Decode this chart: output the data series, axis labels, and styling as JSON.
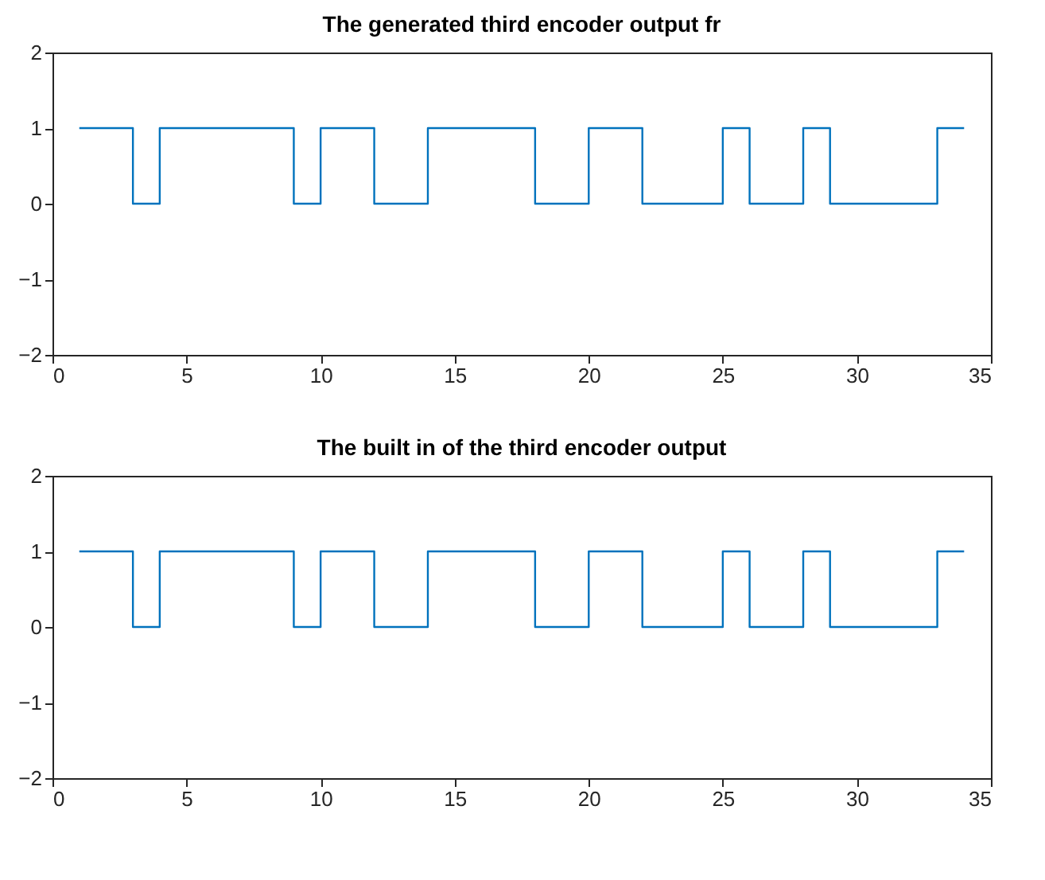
{
  "chart_data": [
    {
      "type": "step",
      "title": "The generated third encoder output fr",
      "x": [
        1,
        2,
        3,
        4,
        5,
        6,
        7,
        8,
        9,
        10,
        11,
        12,
        13,
        14,
        15,
        16,
        17,
        18,
        19,
        20,
        21,
        22,
        23,
        24,
        25,
        26,
        27,
        28,
        29,
        30,
        31,
        32,
        33,
        34
      ],
      "series": [
        {
          "color": "#0072bd",
          "values": [
            1,
            1,
            0,
            1,
            1,
            1,
            1,
            1,
            0,
            1,
            1,
            0,
            0,
            1,
            1,
            1,
            1,
            0,
            0,
            1,
            1,
            0,
            0,
            0,
            1,
            0,
            0,
            1,
            0,
            0,
            0,
            0,
            1,
            1
          ]
        }
      ],
      "xlim": [
        0,
        35
      ],
      "xticks": [
        0,
        5,
        10,
        15,
        20,
        25,
        30,
        35
      ],
      "ylim": [
        -2,
        2
      ],
      "yticks": [
        -2,
        -1,
        0,
        1,
        2
      ],
      "grid": false,
      "legend": false,
      "marker": "none",
      "line_style": "solid"
    },
    {
      "type": "step",
      "title": "The built in of the third encoder output",
      "x": [
        1,
        2,
        3,
        4,
        5,
        6,
        7,
        8,
        9,
        10,
        11,
        12,
        13,
        14,
        15,
        16,
        17,
        18,
        19,
        20,
        21,
        22,
        23,
        24,
        25,
        26,
        27,
        28,
        29,
        30,
        31,
        32,
        33,
        34
      ],
      "series": [
        {
          "color": "#0072bd",
          "values": [
            1,
            1,
            0,
            1,
            1,
            1,
            1,
            1,
            0,
            1,
            1,
            0,
            0,
            1,
            1,
            1,
            1,
            0,
            0,
            1,
            1,
            0,
            0,
            0,
            1,
            0,
            0,
            1,
            0,
            0,
            0,
            0,
            1,
            1
          ]
        }
      ],
      "xlim": [
        0,
        35
      ],
      "xticks": [
        0,
        5,
        10,
        15,
        20,
        25,
        30,
        35
      ],
      "ylim": [
        -2,
        2
      ],
      "yticks": [
        -2,
        -1,
        0,
        1,
        2
      ],
      "grid": false,
      "legend": false,
      "marker": "none",
      "line_style": "solid"
    }
  ]
}
